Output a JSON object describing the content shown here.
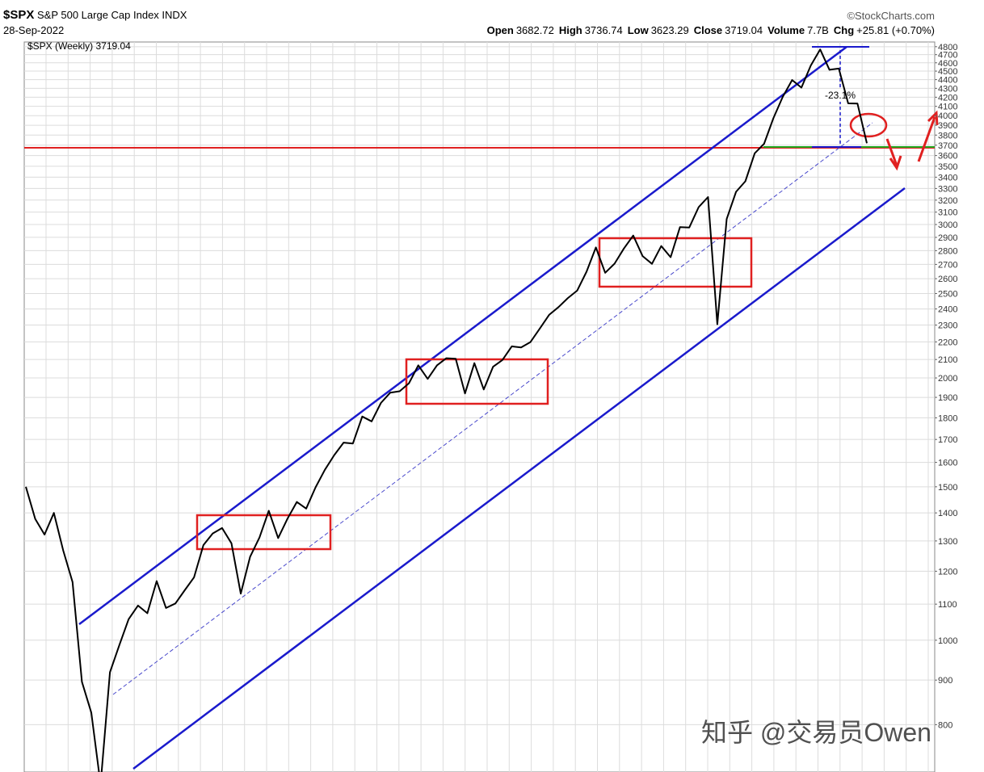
{
  "chart_data": {
    "type": "line",
    "title": "$SPX",
    "subtitle": "S&P 500 Large Cap Index INDX",
    "date": "28-Sep-2022",
    "source": "©StockCharts.com",
    "quote": [
      {
        "label": "Open",
        "value": "3682.72"
      },
      {
        "label": "High",
        "value": "3736.74"
      },
      {
        "label": "Low",
        "value": "3623.29"
      },
      {
        "label": "Close",
        "value": "3719.04"
      },
      {
        "label": "Volume",
        "value": "7.7B"
      },
      {
        "label": "Chg",
        "value": "+25.81 (+0.70%)"
      }
    ],
    "annotation": "-23.1%",
    "watermark": "知乎 @交易员Owen",
    "log_scale": true,
    "grid": true,
    "ylim": [
      715,
      4860
    ],
    "yticks": [
      800,
      900,
      1000,
      1100,
      1200,
      1300,
      1400,
      1500,
      1600,
      1700,
      1800,
      1900,
      2000,
      2100,
      2200,
      2300,
      2400,
      2500,
      2600,
      2700,
      2800,
      2900,
      3000,
      3100,
      3200,
      3300,
      3400,
      3500,
      3600,
      3700,
      3800,
      3900,
      4000,
      4100,
      4200,
      4300,
      4400,
      4500,
      4600,
      4700,
      4800
    ],
    "series": [
      {
        "name": "$SPX (Weekly) 3719.04",
        "color": "#000000",
        "values": [
          1500,
          1378,
          1322,
          1400,
          1267,
          1166,
          896,
          826,
          683,
          919,
          987,
          1057,
          1096,
          1074,
          1169,
          1089,
          1102,
          1141,
          1181,
          1286,
          1326,
          1345,
          1292,
          1131,
          1247,
          1312,
          1408,
          1310,
          1379,
          1441,
          1416,
          1498,
          1569,
          1631,
          1686,
          1682,
          1806,
          1783,
          1872,
          1924,
          1931,
          1972,
          2068,
          1995,
          2068,
          2107,
          2104,
          1920,
          2080,
          1940,
          2060,
          2097,
          2174,
          2168,
          2199,
          2279,
          2363,
          2412,
          2470,
          2519,
          2648,
          2824,
          2641,
          2705,
          2816,
          2914,
          2760,
          2704,
          2834,
          2752,
          2980,
          2977,
          3141,
          3226,
          2305,
          3044,
          3271,
          3363,
          3622,
          3714,
          3973,
          4204,
          4395,
          4308,
          4567,
          4766,
          4516,
          4530,
          4132,
          4130,
          3719
        ]
      }
    ]
  }
}
